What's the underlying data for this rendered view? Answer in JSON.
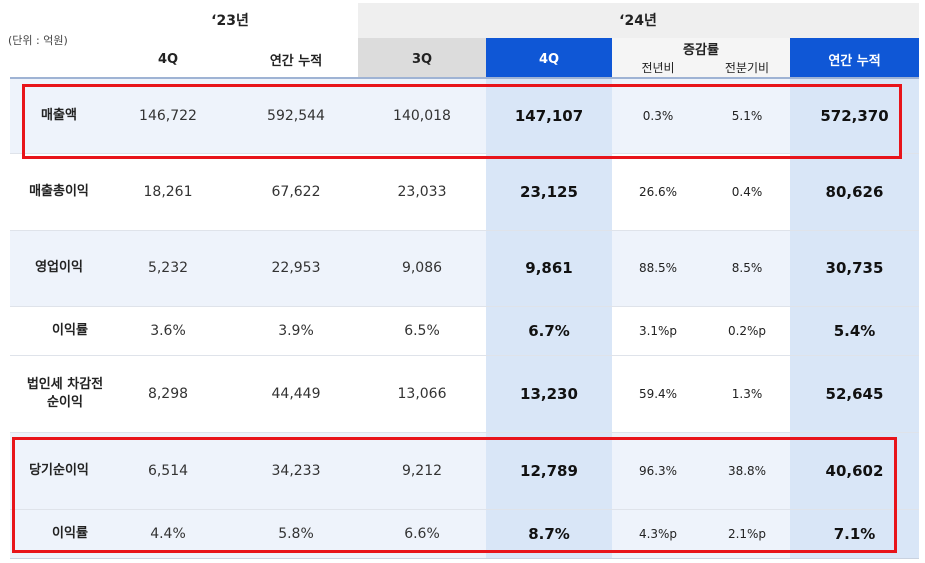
{
  "header": {
    "unit": "(단위 : 억원)",
    "year_2023": "‘23년",
    "year_2024": "‘24년",
    "col_4q_23": "4Q",
    "col_annual_23": "연간 누적",
    "col_3q_24": "3Q",
    "col_4q_24": "4Q",
    "change_rate": "증감률",
    "yoy": "전년비",
    "qoq": "전분기비",
    "col_annual_24": "연간 누적"
  },
  "rows": [
    {
      "label": "매출액",
      "v1": "146,722",
      "v2": "592,544",
      "v3": "140,018",
      "v4": "147,107",
      "yoy": "0.3%",
      "qoq": "5.1%",
      "annual": "572,370"
    },
    {
      "label": "매출총이익",
      "v1": "18,261",
      "v2": "67,622",
      "v3": "23,033",
      "v4": "23,125",
      "yoy": "26.6%",
      "qoq": "0.4%",
      "annual": "80,626"
    },
    {
      "label": "영업이익",
      "v1": "5,232",
      "v2": "22,953",
      "v3": "9,086",
      "v4": "9,861",
      "yoy": "88.5%",
      "qoq": "8.5%",
      "annual": "30,735"
    },
    {
      "label": "이익률",
      "v1": "3.6%",
      "v2": "3.9%",
      "v3": "6.5%",
      "v4": "6.7%",
      "yoy": "3.1%p",
      "qoq": "0.2%p",
      "annual": "5.4%"
    },
    {
      "label": "법인세 차감전",
      "label2": "순이익",
      "v1": "8,298",
      "v2": "44,449",
      "v3": "13,066",
      "v4": "13,230",
      "yoy": "59.4%",
      "qoq": "1.3%",
      "annual": "52,645"
    },
    {
      "label": "당기순이익",
      "v1": "6,514",
      "v2": "34,233",
      "v3": "9,212",
      "v4": "12,789",
      "yoy": "96.3%",
      "qoq": "38.8%",
      "annual": "40,602"
    },
    {
      "label": "이익률",
      "v1": "4.4%",
      "v2": "5.8%",
      "v3": "6.6%",
      "v4": "8.7%",
      "yoy": "4.3%p",
      "qoq": "2.1%p",
      "annual": "7.1%"
    }
  ],
  "colors": {
    "header_blue": "#0f57d6",
    "header_gray": "#dcdcdc",
    "highlight_col": "#d9e6f7",
    "row_tint": "#eef3fb",
    "annotation_red": "#e8141a"
  }
}
